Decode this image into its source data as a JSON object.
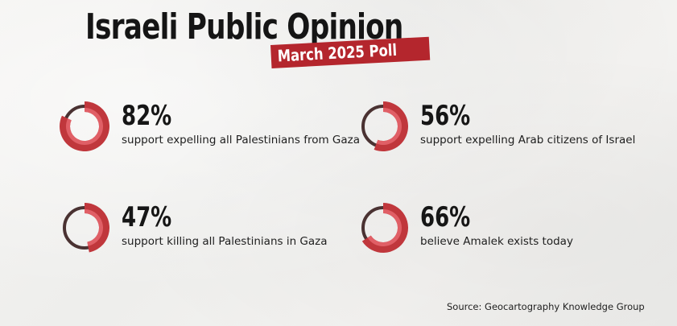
{
  "title": "Israeli Public Opinion",
  "subtitle": "March 2025 Poll",
  "source": "Source: Geocartography Knowledge Group",
  "colors": {
    "accent": "#c0373c",
    "accent_light": "#e3646a",
    "track": "#4a3232",
    "subtitle_bg": "#b4262d"
  },
  "chart_data": {
    "type": "pie",
    "items": [
      {
        "value": 82,
        "percent_label": "82%",
        "label": "support expelling all Palestinians from Gaza"
      },
      {
        "value": 56,
        "percent_label": "56%",
        "label": "support expelling Arab citizens of Israel"
      },
      {
        "value": 47,
        "percent_label": "47%",
        "label": "support killing all Palestinians in Gaza"
      },
      {
        "value": 66,
        "percent_label": "66%",
        "label": "believe Amalek exists today"
      }
    ]
  }
}
